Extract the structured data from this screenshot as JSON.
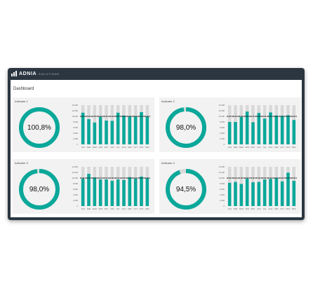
{
  "app": {
    "brand_name": "ADNIA",
    "brand_sub": "SOLUTIONS"
  },
  "page": {
    "title": "Dashboard"
  },
  "colors": {
    "accent": "#0aa89a",
    "background_bar": "#d9d9d9",
    "target_line": "#1a1a1a",
    "panel_bg": "#f2f2f2"
  },
  "panels": [
    {
      "title": "Indicator 1",
      "percent_label": "100,8%",
      "percent_value": 100.8
    },
    {
      "title": "Indicator 2",
      "percent_label": "98,0%",
      "percent_value": 98.0
    },
    {
      "title": "Indicator 3",
      "percent_label": "98,0%",
      "percent_value": 98.0
    },
    {
      "title": "Indicator 4",
      "percent_label": "94,5%",
      "percent_value": 94.5
    }
  ],
  "chart_data": [
    {
      "type": "bar",
      "categories": [
        "JAN",
        "FEB",
        "MAR",
        "APR",
        "MAY",
        "JUN",
        "JUL",
        "AUG",
        "SEP",
        "OCT",
        "NOV",
        "DEC"
      ],
      "y_ticks": [
        "0",
        "2.000",
        "4.000",
        "6.000",
        "8.000",
        "10.000",
        "12.000",
        "14.000"
      ],
      "ylim": [
        0,
        14000
      ],
      "series": [
        {
          "values": [
            14000,
            14000,
            14000,
            14000,
            14000,
            14000,
            14000,
            14000,
            14000,
            14000,
            14000,
            14000
          ]
        },
        {
          "values": [
            11300,
            9000,
            7800,
            9800,
            8500,
            8400,
            11300,
            10300,
            10000,
            10000,
            11500,
            9900
          ]
        },
        {
          "values": [
            10000,
            10000,
            10000,
            10000,
            10000,
            10000,
            10000,
            10000,
            10000,
            10000,
            10000,
            10000
          ]
        }
      ]
    },
    {
      "type": "bar",
      "categories": [
        "JAN",
        "FEB",
        "MAR",
        "APR",
        "MAY",
        "JUN",
        "JUL",
        "AUG",
        "SEP",
        "OCT",
        "NOV",
        "DEC"
      ],
      "y_ticks": [
        "0",
        "2.000",
        "4.000",
        "6.000",
        "8.000",
        "10.000",
        "12.000",
        "14.000"
      ],
      "ylim": [
        0,
        14000
      ],
      "series": [
        {
          "values": [
            14000,
            14000,
            14000,
            14000,
            14000,
            14000,
            14000,
            14000,
            14000,
            14000,
            14000,
            14000
          ]
        },
        {
          "values": [
            8000,
            8000,
            9800,
            11700,
            7900,
            11200,
            9200,
            11400,
            10300,
            10200,
            10400,
            8700
          ]
        },
        {
          "values": [
            10000,
            10000,
            10000,
            10000,
            10000,
            10000,
            10000,
            10000,
            10000,
            10000,
            10000,
            10000
          ]
        }
      ]
    },
    {
      "type": "bar",
      "categories": [
        "JAN",
        "FEB",
        "MAR",
        "APR",
        "MAY",
        "JUN",
        "JUL",
        "AUG",
        "SEP",
        "OCT",
        "NOV",
        "DEC"
      ],
      "y_ticks": [
        "0",
        "2.000",
        "4.000",
        "6.000",
        "8.000",
        "10.000",
        "12.000",
        "14.000"
      ],
      "ylim": [
        0,
        14000
      ],
      "series": [
        {
          "values": [
            14000,
            14000,
            14000,
            14000,
            14000,
            14000,
            14000,
            14000,
            14000,
            14000,
            14000,
            14000
          ]
        },
        {
          "values": [
            9800,
            11500,
            10200,
            9500,
            9500,
            9000,
            9500,
            9300,
            10300,
            9800,
            10500,
            10000
          ]
        },
        {
          "values": [
            10000,
            10000,
            10000,
            10000,
            10000,
            10000,
            10000,
            10000,
            10000,
            10000,
            10000,
            10000
          ]
        }
      ]
    },
    {
      "type": "bar",
      "categories": [
        "JAN",
        "FEB",
        "MAR",
        "APR",
        "MAY",
        "JUN",
        "JUL",
        "AUG",
        "SEP",
        "OCT",
        "NOV",
        "DEC"
      ],
      "y_ticks": [
        "0",
        "2.000",
        "4.000",
        "6.000",
        "8.000",
        "10.000",
        "12.000",
        "14.000"
      ],
      "ylim": [
        0,
        14000
      ],
      "series": [
        {
          "values": [
            14000,
            14000,
            14000,
            14000,
            14000,
            14000,
            14000,
            14000,
            14000,
            14000,
            14000,
            14000
          ]
        },
        {
          "values": [
            8300,
            8600,
            7900,
            9800,
            8500,
            8600,
            9500,
            9700,
            10000,
            8800,
            11900,
            9000
          ]
        },
        {
          "values": [
            10000,
            10000,
            10000,
            10000,
            10000,
            10000,
            10000,
            10000,
            10000,
            10000,
            10000,
            10000
          ]
        }
      ]
    }
  ]
}
